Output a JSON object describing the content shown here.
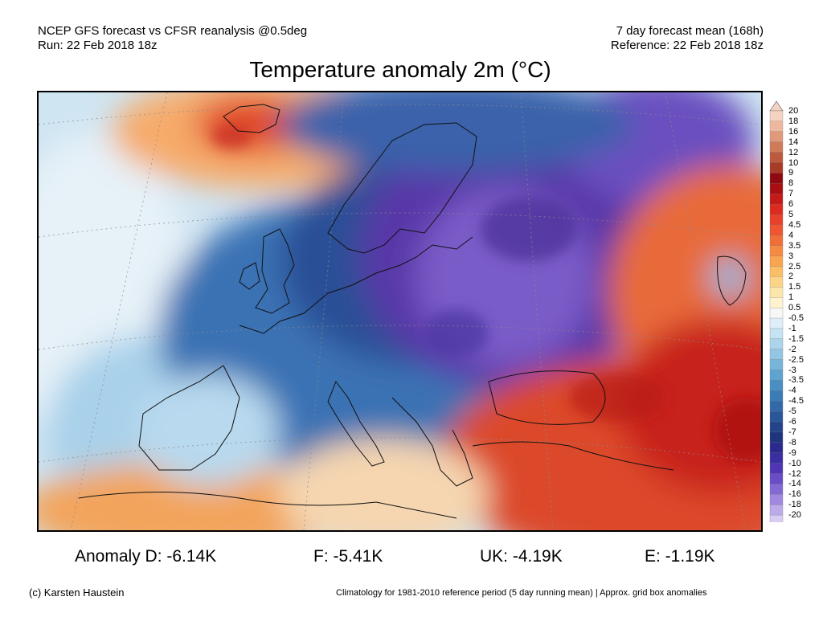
{
  "header": {
    "left_line1": "NCEP GFS forecast vs CFSR reanalysis @0.5deg",
    "left_line2": "Run: 22 Feb 2018 18z",
    "right_line1": "7 day forecast mean (168h)",
    "right_line2": "Reference: 22 Feb 2018 18z",
    "title": "Temperature anomaly 2m (°C)"
  },
  "colorbar": {
    "labels": [
      "20",
      "18",
      "16",
      "14",
      "12",
      "10",
      "9",
      "8",
      "7",
      "6",
      "5",
      "4.5",
      "4",
      "3.5",
      "3",
      "2.5",
      "2",
      "1.5",
      "1",
      "0.5",
      "-0.5",
      "-1",
      "-1.5",
      "-2",
      "-2.5",
      "-3",
      "-3.5",
      "-4",
      "-4.5",
      "-5",
      "-6",
      "-7",
      "-8",
      "-9",
      "-10",
      "-12",
      "-14",
      "-16",
      "-18",
      "-20"
    ],
    "colors": [
      "#f6d2c2",
      "#eeb8a0",
      "#e09a7a",
      "#d07a5a",
      "#bb5a3c",
      "#a83a28",
      "#8e0a10",
      "#a80e12",
      "#c41a18",
      "#dc2a1e",
      "#e8402a",
      "#ee5530",
      "#f26e38",
      "#f58a42",
      "#f8a450",
      "#fabe66",
      "#fcd488",
      "#fde6aa",
      "#fff3cf",
      "#f7f7f7",
      "#ddeef8",
      "#c6e3f3",
      "#acd5ec",
      "#92c6e4",
      "#78b5da",
      "#5fa3cf",
      "#4a8fc3",
      "#3b7cb6",
      "#3269a8",
      "#2a569a",
      "#23448b",
      "#1d357c",
      "#2a2a8c",
      "#3a2ea0",
      "#5036b4",
      "#6a4cc6",
      "#8468d4",
      "#a088e0",
      "#bcaaea",
      "#d8ccf4"
    ]
  },
  "anomalies": {
    "D": "Anomaly D: -6.14K",
    "F": "F: -5.41K",
    "UK": "UK: -4.19K",
    "E": "E: -1.19K"
  },
  "footer": {
    "copyright": "(c) Karsten Haustein",
    "note": "Climatology for 1981-2010 reference period (5 day running mean) | Approx. grid box anomalies"
  }
}
